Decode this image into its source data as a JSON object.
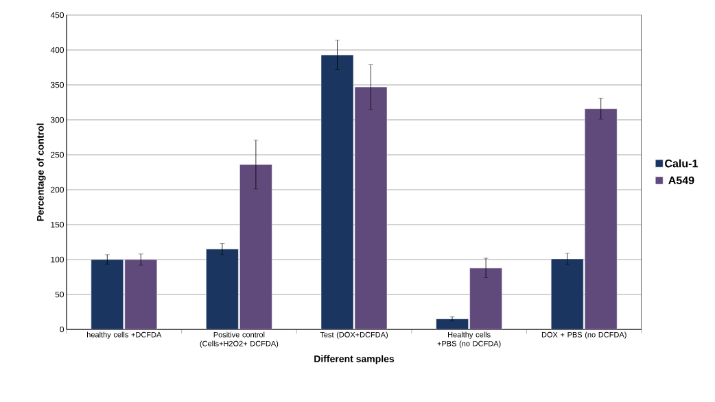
{
  "chart_data": {
    "type": "bar",
    "xlabel": "Different samples",
    "ylabel": "Percentage of control",
    "categories": [
      "healthy cells +DCFDA",
      "Positive control (Cells+H2O2+ DCFDA)",
      "Test (DOX+DCFDA)",
      "Healthy cells +PBS (no DCFDA)",
      "DOX + PBS (no DCFDA)"
    ],
    "series": [
      {
        "name": "Calu-1",
        "color": "#1a3660",
        "values": [
          100,
          115,
          393,
          15,
          101
        ],
        "errors": [
          7,
          8,
          21,
          3,
          8
        ]
      },
      {
        "name": "A549",
        "color": "#604a7b",
        "values": [
          100,
          236,
          347,
          88,
          316
        ],
        "errors": [
          8,
          35,
          32,
          14,
          15
        ]
      }
    ],
    "ylim": [
      0,
      450
    ],
    "yticks": [
      0,
      50,
      100,
      150,
      200,
      250,
      300,
      350,
      400,
      450
    ],
    "grid": "y",
    "legend": "right"
  }
}
